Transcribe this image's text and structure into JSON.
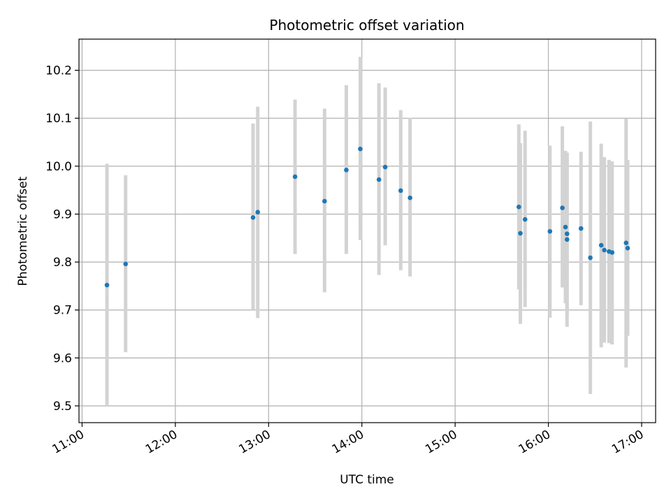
{
  "chart_data": {
    "type": "scatter",
    "title": "Photometric offset variation",
    "xlabel": "UTC time",
    "ylabel": "Photometric offset",
    "grid": true,
    "xlim": [
      "10:58",
      "17:09"
    ],
    "ylim": [
      9.465,
      10.265
    ],
    "x_ticks": [
      "11:00",
      "12:00",
      "13:00",
      "14:00",
      "15:00",
      "16:00",
      "17:00"
    ],
    "y_ticks": [
      9.5,
      9.6,
      9.7,
      9.8,
      9.9,
      10.0,
      10.1,
      10.2
    ],
    "y_tick_labels": [
      "9.5",
      "9.6",
      "9.7",
      "9.8",
      "9.9",
      "10.0",
      "10.1",
      "10.2"
    ],
    "colors": {
      "points": "#1f77b4",
      "error_bars": "#d3d3d3",
      "grid": "#b0b0b0"
    },
    "points": [
      {
        "t": "11:16",
        "y": 9.752,
        "lo": 9.5,
        "hi": 10.005
      },
      {
        "t": "11:28",
        "y": 9.796,
        "lo": 9.612,
        "hi": 9.981
      },
      {
        "t": "12:50",
        "y": 9.893,
        "lo": 9.7,
        "hi": 10.089
      },
      {
        "t": "12:53",
        "y": 9.904,
        "lo": 9.683,
        "hi": 10.124
      },
      {
        "t": "13:17",
        "y": 9.978,
        "lo": 9.817,
        "hi": 10.139
      },
      {
        "t": "13:36",
        "y": 9.927,
        "lo": 9.737,
        "hi": 10.12
      },
      {
        "t": "13:50",
        "y": 9.992,
        "lo": 9.817,
        "hi": 10.169
      },
      {
        "t": "13:59",
        "y": 10.036,
        "lo": 9.846,
        "hi": 10.228
      },
      {
        "t": "14:11",
        "y": 9.972,
        "lo": 9.773,
        "hi": 10.173
      },
      {
        "t": "14:15",
        "y": 9.998,
        "lo": 9.835,
        "hi": 10.164
      },
      {
        "t": "14:25",
        "y": 9.949,
        "lo": 9.783,
        "hi": 10.117
      },
      {
        "t": "14:31",
        "y": 9.934,
        "lo": 9.77,
        "hi": 10.101
      },
      {
        "t": "15:41",
        "y": 9.915,
        "lo": 9.743,
        "hi": 10.087
      },
      {
        "t": "15:42",
        "y": 9.86,
        "lo": 9.671,
        "hi": 10.048
      },
      {
        "t": "15:45",
        "y": 9.889,
        "lo": 9.706,
        "hi": 10.074
      },
      {
        "t": "16:01",
        "y": 9.864,
        "lo": 9.684,
        "hi": 10.043
      },
      {
        "t": "16:09",
        "y": 9.913,
        "lo": 9.747,
        "hi": 10.083
      },
      {
        "t": "16:11",
        "y": 9.873,
        "lo": 9.714,
        "hi": 10.032
      },
      {
        "t": "16:12",
        "y": 9.859,
        "lo": 9.69,
        "hi": 10.028
      },
      {
        "t": "16:12",
        "y": 9.847,
        "lo": 9.665,
        "hi": 10.028
      },
      {
        "t": "16:21",
        "y": 9.87,
        "lo": 9.71,
        "hi": 10.03
      },
      {
        "t": "16:27",
        "y": 9.809,
        "lo": 9.525,
        "hi": 10.093
      },
      {
        "t": "16:34",
        "y": 9.835,
        "lo": 9.622,
        "hi": 10.047
      },
      {
        "t": "16:36",
        "y": 9.825,
        "lo": 9.632,
        "hi": 10.019
      },
      {
        "t": "16:39",
        "y": 9.822,
        "lo": 9.631,
        "hi": 10.013
      },
      {
        "t": "16:41",
        "y": 9.82,
        "lo": 9.628,
        "hi": 10.01
      },
      {
        "t": "16:50",
        "y": 9.84,
        "lo": 9.58,
        "hi": 10.099
      },
      {
        "t": "16:51",
        "y": 9.829,
        "lo": 9.646,
        "hi": 10.013
      }
    ]
  }
}
